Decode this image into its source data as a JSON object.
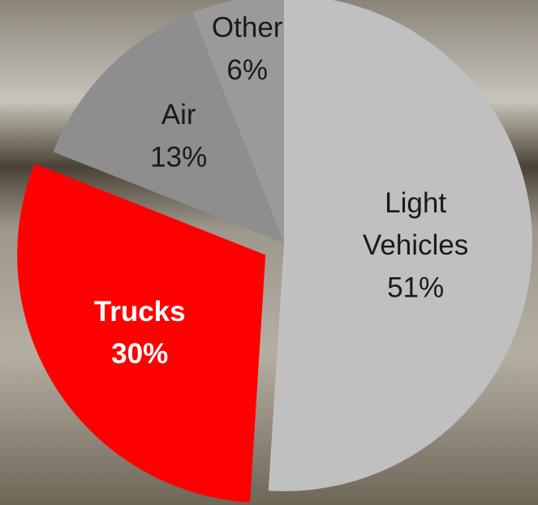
{
  "chart_data": {
    "type": "pie",
    "categories": [
      "Light Vehicles",
      "Trucks",
      "Air",
      "Other"
    ],
    "values": [
      51,
      30,
      13,
      6
    ],
    "value_labels": [
      "51%",
      "30%",
      "13%",
      "6%"
    ],
    "colors": [
      "#c0c0c0",
      "#ff0000",
      "#8e8e8e",
      "#9a9a9a"
    ],
    "explode": [
      false,
      true,
      false,
      false
    ]
  }
}
